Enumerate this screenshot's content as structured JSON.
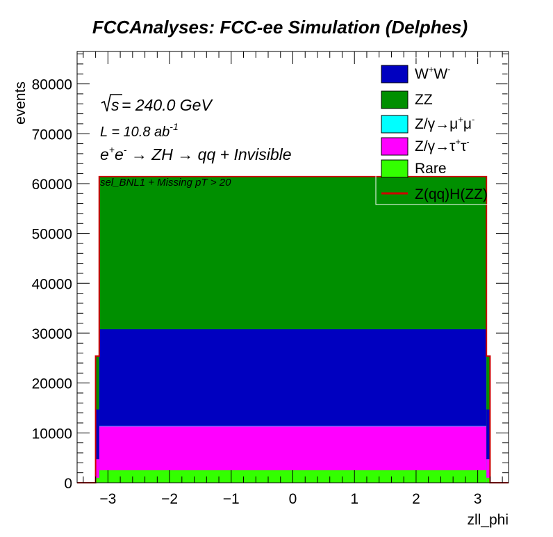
{
  "chart_data": {
    "type": "stacked-histogram",
    "title": "FCCAnalyses: FCC-ee Simulation (Delphes)",
    "xlabel": "zll_phi",
    "ylabel": "events",
    "xlim": [
      -3.5,
      3.5
    ],
    "ylim": [
      0,
      86500
    ],
    "xticks": [
      -3,
      -2,
      -1,
      0,
      1,
      2,
      3
    ],
    "xtick_labels": [
      "−3",
      "−2",
      "−1",
      "0",
      "1",
      "2",
      "3"
    ],
    "yticks": [
      0,
      10000,
      20000,
      30000,
      40000,
      50000,
      60000,
      70000,
      80000
    ],
    "ytick_labels": [
      "0",
      "10000",
      "20000",
      "30000",
      "40000",
      "50000",
      "60000",
      "70000",
      "80000"
    ],
    "grid": false,
    "legend_position": "top-right",
    "annotations": {
      "energy_prefix": "s",
      "energy_text": " = 240.0 GeV",
      "lumi_text": "L = 10.8 ab",
      "lumi_sup": "-1",
      "process": {
        "e": "e",
        "plus": "+",
        "minus": "-",
        "arrow1": " → ZH ",
        "arrow2": "→ qq + Invisible"
      },
      "selection": "sel_BNL1 + Missing pT > 20"
    },
    "legend": {
      "ww": {
        "base": "W",
        "sup1": "+",
        "mid": "W",
        "sup2": "-"
      },
      "zz": "ZZ",
      "zmumu": {
        "base": "Z/γ→μ",
        "sup1": "+",
        "mid": "μ",
        "sup2": "-"
      },
      "ztautau": {
        "base": "Z/γ→τ",
        "sup1": "+",
        "mid": "τ",
        "sup2": "-"
      },
      "rare": "Rare",
      "signal": "Z(qq)H(ZZ)"
    },
    "bins": {
      "edges_x": [
        -3.5,
        -3.2,
        -3.14159,
        3.14159,
        3.2,
        3.5
      ],
      "edge_bins": {
        "rare": 1000,
        "ztautau": 3700,
        "zmumu": 0,
        "ww": 10000,
        "zz": 10700
      }
    },
    "series": [
      {
        "id": "rare",
        "color": "#33ff00",
        "level": 2500
      },
      {
        "id": "ztautau",
        "color": "#ff00ff",
        "level": 11300
      },
      {
        "id": "zmumu",
        "color": "#00ffff",
        "level": 11400
      },
      {
        "id": "ww",
        "color": "#0000c0",
        "level": 30800
      },
      {
        "id": "zz",
        "color": "#008f00",
        "level": 61400
      },
      {
        "id": "signal",
        "color": "#cc0000",
        "level": 61400
      }
    ]
  }
}
